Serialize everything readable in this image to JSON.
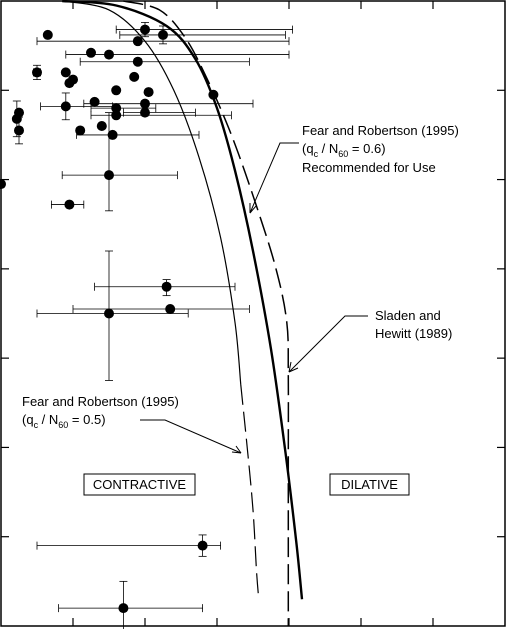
{
  "chart_data": {
    "type": "scatter",
    "title": "",
    "xlabel": "",
    "ylabel": "",
    "xlim": [
      0,
      7
    ],
    "ylim": [
      0,
      7
    ],
    "x_ticks": [
      1,
      2,
      3,
      4,
      5,
      6
    ],
    "y_ticks": [
      1,
      2,
      3,
      4,
      5,
      6
    ],
    "regions": [
      "CONTRACTIVE",
      "DILATIVE"
    ],
    "curves": [
      {
        "name": "Fear and Robertson (1995) (qc / N60 = 0.6) Recommended for Use",
        "style": "thick",
        "points": [
          [
            0.85,
            7.0
          ],
          [
            1.6,
            6.95
          ],
          [
            2.3,
            6.72
          ],
          [
            2.7,
            6.35
          ],
          [
            3.0,
            5.8
          ],
          [
            3.25,
            5.1
          ],
          [
            3.5,
            4.2
          ],
          [
            3.75,
            3.1
          ],
          [
            3.95,
            1.95
          ],
          [
            4.1,
            0.95
          ],
          [
            4.18,
            0.3
          ]
        ]
      },
      {
        "name": "Sladen and Hewitt (1989)",
        "style": "dashed",
        "points": [
          [
            1.7,
            7.0
          ],
          [
            2.2,
            6.9
          ],
          [
            2.55,
            6.6
          ],
          [
            2.85,
            6.15
          ],
          [
            3.2,
            5.5
          ],
          [
            3.55,
            4.7
          ],
          [
            3.82,
            4.0
          ],
          [
            3.97,
            3.4
          ],
          [
            3.99,
            2.8
          ],
          [
            3.99,
            1.8
          ],
          [
            3.99,
            0.8
          ],
          [
            3.99,
            0.0
          ]
        ]
      },
      {
        "name": "Fear and Robertson (1995) (qc / N60 = 0.5)",
        "style": "thin-then-dashed",
        "points": [
          [
            0.85,
            7.0
          ],
          [
            1.5,
            6.9
          ],
          [
            2.0,
            6.55
          ],
          [
            2.4,
            6.0
          ],
          [
            2.75,
            5.25
          ],
          [
            3.05,
            4.35
          ],
          [
            3.25,
            3.4
          ],
          [
            3.33,
            2.7
          ]
        ],
        "dashed_points": [
          [
            3.33,
            2.7
          ],
          [
            3.42,
            2.0
          ],
          [
            3.5,
            1.3
          ],
          [
            3.55,
            0.6
          ],
          [
            3.58,
            0.3
          ]
        ]
      }
    ],
    "points": [
      {
        "x": 0.65,
        "y": 6.62
      },
      {
        "x": 1.25,
        "y": 6.42
      },
      {
        "x": 1.5,
        "y": 6.4,
        "xerr": [
          0.6,
          2.5
        ]
      },
      {
        "x": 2.0,
        "y": 6.68,
        "xerr": [
          0.4,
          2.05
        ],
        "yerr": [
          0.08,
          0.08
        ]
      },
      {
        "x": 2.25,
        "y": 6.62,
        "xerr": [
          0.6,
          1.7
        ],
        "yerr": [
          0.1,
          0.1
        ]
      },
      {
        "x": 1.9,
        "y": 6.55,
        "xerr": [
          1.4,
          2.1
        ]
      },
      {
        "x": 1.9,
        "y": 6.32,
        "xerr": [
          0.8,
          1.55
        ]
      },
      {
        "x": 0.5,
        "y": 6.2,
        "xerr": [
          0.05,
          0.05
        ],
        "yerr": [
          0.08,
          0.08
        ]
      },
      {
        "x": 0.9,
        "y": 6.2
      },
      {
        "x": 1.0,
        "y": 6.12
      },
      {
        "x": 0.95,
        "y": 6.08
      },
      {
        "x": 1.85,
        "y": 6.15
      },
      {
        "x": 1.6,
        "y": 6.0
      },
      {
        "x": 2.05,
        "y": 5.98
      },
      {
        "x": 2.0,
        "y": 5.85,
        "xerr": [
          0.85,
          1.5
        ]
      },
      {
        "x": 2.95,
        "y": 5.95
      },
      {
        "x": 1.3,
        "y": 5.87
      },
      {
        "x": 0.9,
        "y": 5.82,
        "xerr": [
          0.35,
          0.65
        ],
        "yerr": [
          0.15,
          0.15
        ]
      },
      {
        "x": 1.6,
        "y": 5.8,
        "xerr": [
          0.35,
          0.55
        ]
      },
      {
        "x": 0.25,
        "y": 5.75
      },
      {
        "x": 0.22,
        "y": 5.68,
        "yerr": [
          0.2,
          0.2
        ]
      },
      {
        "x": 1.6,
        "y": 5.72,
        "xerr": [
          0.35,
          1.6
        ]
      },
      {
        "x": 2.0,
        "y": 5.75,
        "xerr": [
          0.3,
          0.7
        ]
      },
      {
        "x": 1.4,
        "y": 5.6
      },
      {
        "x": 1.1,
        "y": 5.55
      },
      {
        "x": 1.55,
        "y": 5.5,
        "xerr": [
          0.5,
          1.2
        ]
      },
      {
        "x": 0.25,
        "y": 5.55,
        "yerr": [
          0.15,
          0.15
        ]
      },
      {
        "x": 1.5,
        "y": 5.05,
        "xerr": [
          0.65,
          0.95
        ],
        "yerr": [
          0.7,
          0.4
        ]
      },
      {
        "x": 0.0,
        "y": 4.95
      },
      {
        "x": 0.95,
        "y": 4.72,
        "xerr": [
          0.25,
          0.2
        ]
      },
      {
        "x": 2.3,
        "y": 3.8,
        "xerr": [
          1.0,
          0.95
        ],
        "yerr": [
          0.08,
          0.1
        ]
      },
      {
        "x": 2.35,
        "y": 3.55,
        "xerr": [
          1.35,
          1.1
        ]
      },
      {
        "x": 1.5,
        "y": 3.5,
        "xerr": [
          1.0,
          1.1
        ],
        "yerr": [
          0.7,
          0.75
        ]
      },
      {
        "x": 2.8,
        "y": 0.9,
        "xerr": [
          2.3,
          0.25
        ],
        "yerr": [
          0.12,
          0.12
        ]
      },
      {
        "x": 1.7,
        "y": 0.2,
        "xerr": [
          0.9,
          1.1
        ],
        "yerr": [
          0.3,
          0.3
        ]
      }
    ],
    "annotations": [
      {
        "lines": [
          "Fear and Robertson (1995)",
          "(q",
          "c",
          " / N",
          "60",
          " = 0.6)",
          "Recommended for Use"
        ]
      },
      {
        "lines": [
          "Sladen and",
          "Hewitt (1989)"
        ]
      },
      {
        "lines": [
          "Fear and Robertson (1995)",
          "(q",
          "c",
          " / N",
          "60",
          " = 0.5)"
        ]
      }
    ]
  },
  "labels": {
    "contractive": "CONTRACTIVE",
    "dilative": "DILATIVE",
    "fr06_line1": "Fear and Robertson (1995)",
    "fr06_q": "(q",
    "fr06_c": "c",
    "fr06_n": " / N",
    "fr06_60": "60",
    "fr06_val": " = 0.6)",
    "fr06_line3": "Recommended for Use",
    "sh_line1": "Sladen and",
    "sh_line2": "Hewitt (1989)",
    "fr05_line1": "Fear and Robertson (1995)",
    "fr05_q": "(q",
    "fr05_c": "c",
    "fr05_n": " / N",
    "fr05_60": "60",
    "fr05_val": " = 0.5)"
  }
}
